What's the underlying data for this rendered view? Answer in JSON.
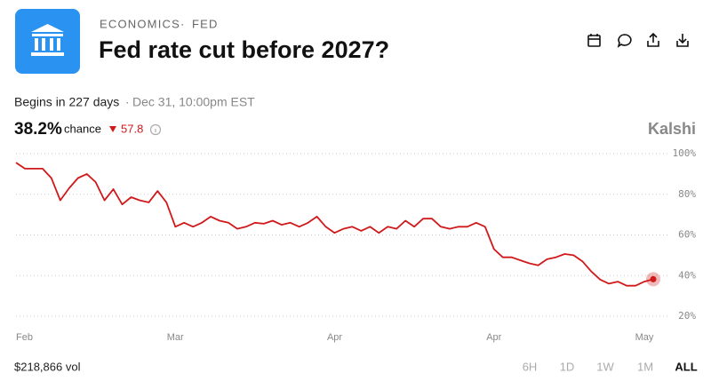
{
  "header": {
    "category": "ECONOMICS",
    "subcategory": "FED",
    "title": "Fed rate cut before 2027?"
  },
  "status": {
    "begins": "Begins in 227 days",
    "date": "Dec 31, 10:00pm EST"
  },
  "chance": {
    "value": "38.2%",
    "label": "chance",
    "change": "57.8"
  },
  "brand": "Kalshi",
  "chart_data": {
    "type": "line",
    "categories": [
      "Feb",
      null,
      null,
      null,
      null,
      null,
      null,
      null,
      null,
      null,
      null,
      null,
      null,
      null,
      null,
      null,
      null,
      null,
      "Mar",
      null,
      null,
      null,
      null,
      null,
      null,
      null,
      null,
      null,
      null,
      null,
      null,
      null,
      null,
      null,
      null,
      null,
      "Apr",
      null,
      null,
      null,
      null,
      null,
      null,
      null,
      null,
      null,
      null,
      null,
      null,
      null,
      null,
      null,
      null,
      null,
      "Apr",
      null,
      null,
      null,
      null,
      null,
      null,
      null,
      null,
      null,
      null,
      null,
      null,
      null,
      null,
      null,
      null,
      "May",
      null
    ],
    "series": [
      {
        "name": "Chance",
        "color": "#d0191b",
        "values": [
          95.6,
          92.6,
          92.6,
          92.6,
          88,
          77,
          83,
          88,
          90,
          86,
          77,
          82.5,
          75,
          78.6,
          77,
          76,
          81.6,
          76,
          64,
          66,
          64,
          66,
          69,
          67,
          66,
          63,
          64,
          66,
          65.5,
          67,
          65,
          66,
          64,
          66,
          69,
          64,
          61,
          63,
          64,
          62,
          64,
          61,
          64,
          63,
          67,
          64,
          68,
          68,
          64,
          63,
          64,
          64,
          66,
          64,
          53,
          49,
          49,
          47.5,
          46,
          45,
          48,
          49,
          50.6,
          50,
          47,
          42,
          38,
          36,
          37,
          35,
          35,
          37,
          38.2
        ]
      }
    ],
    "ylim": [
      20,
      100
    ],
    "yticks": [
      {
        "value": 20,
        "label": "20%"
      },
      {
        "value": 40,
        "label": "40%"
      },
      {
        "value": 60,
        "label": "60%"
      },
      {
        "value": 80,
        "label": "80%"
      },
      {
        "value": 100,
        "label": "100%"
      }
    ],
    "grid": true
  },
  "volume": "$218,866 vol",
  "ranges": [
    "6H",
    "1D",
    "1W",
    "1M",
    "ALL"
  ]
}
